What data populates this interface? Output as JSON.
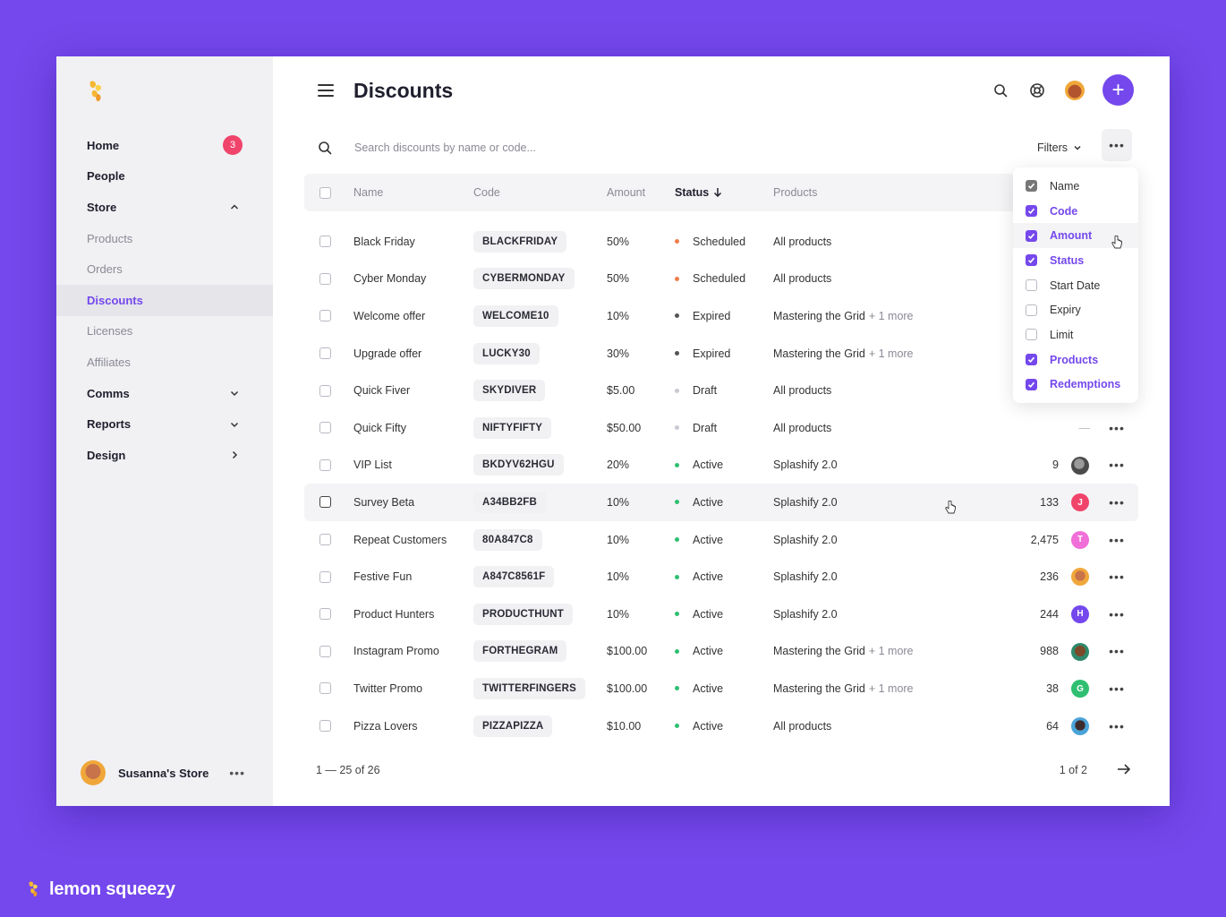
{
  "sidebar": {
    "nav": [
      {
        "label": "Home",
        "type": "top",
        "badge": "3"
      },
      {
        "label": "People",
        "type": "top"
      },
      {
        "label": "Store",
        "type": "top",
        "chevron": "up"
      },
      {
        "label": "Products",
        "type": "sub"
      },
      {
        "label": "Orders",
        "type": "sub"
      },
      {
        "label": "Discounts",
        "type": "sub",
        "active": true
      },
      {
        "label": "Licenses",
        "type": "sub"
      },
      {
        "label": "Affiliates",
        "type": "sub"
      },
      {
        "label": "Comms",
        "type": "top",
        "chevron": "down"
      },
      {
        "label": "Reports",
        "type": "top",
        "chevron": "down"
      },
      {
        "label": "Design",
        "type": "top",
        "chevron": "right"
      }
    ],
    "store_name": "Susanna's Store",
    "more": "•••"
  },
  "header": {
    "title": "Discounts",
    "icons": [
      "search-icon",
      "help-icon",
      "user-avatar",
      "add-icon"
    ],
    "add_label": "+"
  },
  "search": {
    "placeholder": "Search discounts by name or code...",
    "filters_label": "Filters",
    "more_label": "•••"
  },
  "table": {
    "columns": {
      "name": "Name",
      "code": "Code",
      "amount": "Amount",
      "status": "Status",
      "products": "Products"
    },
    "rows": [
      {
        "name": "Black Friday",
        "code": "BLACKFRIDAY",
        "amount": "50%",
        "status": "Scheduled",
        "products": "All products",
        "more_products": ""
      },
      {
        "name": "Cyber Monday",
        "code": "CYBERMONDAY",
        "amount": "50%",
        "status": "Scheduled",
        "products": "All products",
        "more_products": ""
      },
      {
        "name": "Welcome offer",
        "code": "WELCOME10",
        "amount": "10%",
        "status": "Expired",
        "products": "Mastering the Grid",
        "more_products": "+ 1 more"
      },
      {
        "name": "Upgrade offer",
        "code": "LUCKY30",
        "amount": "30%",
        "status": "Expired",
        "products": "Mastering the Grid",
        "more_products": "+ 1 more"
      },
      {
        "name": "Quick Fiver",
        "code": "SKYDIVER",
        "amount": "$5.00",
        "status": "Draft",
        "products": "All products",
        "more_products": ""
      },
      {
        "name": "Quick Fifty",
        "code": "NIFTYFIFTY",
        "amount": "$50.00",
        "status": "Draft",
        "products": "All products",
        "more_products": "",
        "redemptions": "—"
      },
      {
        "name": "VIP List",
        "code": "BKDYV62HGU",
        "amount": "20%",
        "status": "Active",
        "products": "Splashify 2.0",
        "more_products": "",
        "redemptions": "9",
        "avatar": "photo-grey"
      },
      {
        "name": "Survey Beta",
        "code": "A34BB2FB",
        "amount": "10%",
        "status": "Active",
        "products": "Splashify 2.0",
        "more_products": "",
        "redemptions": "133",
        "avatar": "J"
      },
      {
        "name": "Repeat Customers",
        "code": "80A847C8",
        "amount": "10%",
        "status": "Active",
        "products": "Splashify 2.0",
        "more_products": "",
        "redemptions": "2,475",
        "avatar": "T"
      },
      {
        "name": "Festive Fun",
        "code": "A847C8561F",
        "amount": "10%",
        "status": "Active",
        "products": "Splashify 2.0",
        "more_products": "",
        "redemptions": "236",
        "avatar": "photo-orange"
      },
      {
        "name": "Product Hunters",
        "code": "PRODUCTHUNT",
        "amount": "10%",
        "status": "Active",
        "products": "Splashify 2.0",
        "more_products": "",
        "redemptions": "244",
        "avatar": "H"
      },
      {
        "name": "Instagram Promo",
        "code": "FORTHEGRAM",
        "amount": "$100.00",
        "status": "Active",
        "products": "Mastering the Grid",
        "more_products": "+ 1 more",
        "redemptions": "988",
        "avatar": "photo-brown"
      },
      {
        "name": "Twitter Promo",
        "code": "TWITTERFINGERS",
        "amount": "$100.00",
        "status": "Active",
        "products": "Mastering the Grid",
        "more_products": "+ 1 more",
        "redemptions": "38",
        "avatar": "G"
      },
      {
        "name": "Pizza Lovers",
        "code": "PIZZAPIZZA",
        "amount": "$10.00",
        "status": "Active",
        "products": "All products",
        "more_products": "",
        "redemptions": "64",
        "avatar": "photo-blue"
      }
    ]
  },
  "status_colors": {
    "Scheduled": "#f07c4a",
    "Expired": "#555555",
    "Draft": "#c9c9d2",
    "Active": "#2fbf71"
  },
  "avatar_colors": {
    "J": "#f0446b",
    "T": "#f06fd8",
    "H": "#7448ec",
    "G": "#2fbf71"
  },
  "pagination": {
    "range": "1 — 25 of 26",
    "page": "1 of 2"
  },
  "column_menu": {
    "items": [
      {
        "label": "Name",
        "checked": true,
        "locked": true
      },
      {
        "label": "Code",
        "checked": true
      },
      {
        "label": "Amount",
        "checked": true,
        "highlighted": true
      },
      {
        "label": "Status",
        "checked": true
      },
      {
        "label": "Start Date",
        "checked": false
      },
      {
        "label": "Expiry",
        "checked": false
      },
      {
        "label": "Limit",
        "checked": false
      },
      {
        "label": "Products",
        "checked": true
      },
      {
        "label": "Redemptions",
        "checked": true
      }
    ]
  },
  "brand": {
    "name": "lemon squeezy"
  },
  "colors": {
    "accent": "#7448ec",
    "background": "#7448ec",
    "badge": "#f0446b"
  }
}
